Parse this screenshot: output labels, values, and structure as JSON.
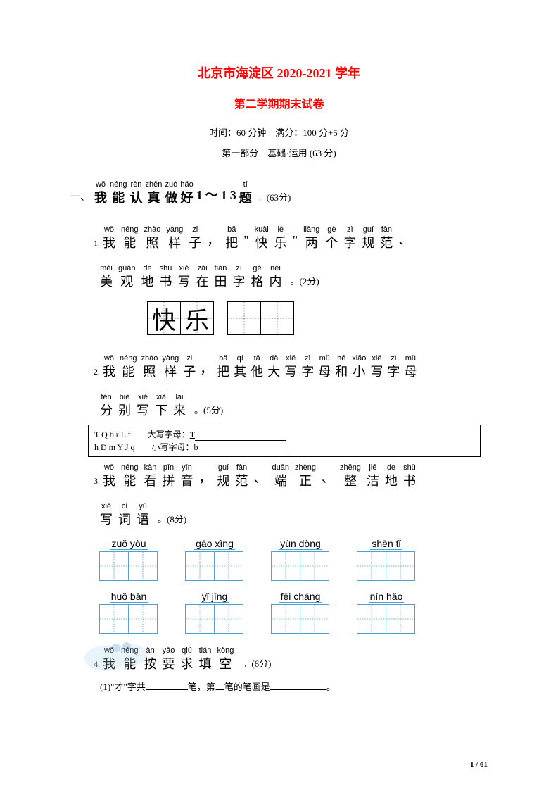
{
  "header": {
    "title_main": "北京市海淀区 2020-2021 学年",
    "title_sub": "第二学期期末试卷",
    "meta": "时间：60 分钟　满分：100 分+5 分",
    "section": "第一部分　基础·运用  (63 分)"
  },
  "section1": {
    "num": "一、",
    "chars": [
      {
        "p": "wǒ",
        "h": "我"
      },
      {
        "p": "néng",
        "h": "能"
      },
      {
        "p": "rèn",
        "h": "认"
      },
      {
        "p": "zhēn",
        "h": "真"
      },
      {
        "p": "zuò",
        "h": "做"
      },
      {
        "p": "hǎo",
        "h": "好"
      },
      {
        "p": "",
        "h": "1"
      },
      {
        "p": "",
        "h": "～"
      },
      {
        "p": "",
        "h": "1"
      },
      {
        "p": "",
        "h": "3"
      },
      {
        "p": "tí",
        "h": "题"
      }
    ],
    "tail": "。(63分)"
  },
  "q1": {
    "num": "1.",
    "line1": [
      {
        "p": "wǒ",
        "h": "我"
      },
      {
        "p": "néng",
        "h": "能"
      },
      {
        "p": "zhào",
        "h": "照"
      },
      {
        "p": "yàng",
        "h": "样"
      },
      {
        "p": "zi",
        "h": "子"
      },
      {
        "p": "",
        "h": "，"
      },
      {
        "p": "bǎ",
        "h": "把"
      },
      {
        "p": "",
        "h": "\""
      },
      {
        "p": "kuài",
        "h": "快"
      },
      {
        "p": "lè",
        "h": "乐"
      },
      {
        "p": "",
        "h": "\""
      },
      {
        "p": "liǎng",
        "h": "两"
      },
      {
        "p": "gè",
        "h": "个"
      },
      {
        "p": "zì",
        "h": "字"
      },
      {
        "p": "guī",
        "h": "规"
      },
      {
        "p": "fàn",
        "h": "范"
      },
      {
        "p": "",
        "h": "、"
      }
    ],
    "line2": [
      {
        "p": "měi",
        "h": "美"
      },
      {
        "p": "guān",
        "h": "观"
      },
      {
        "p": "de",
        "h": "地"
      },
      {
        "p": "shū",
        "h": "书"
      },
      {
        "p": "xiě",
        "h": "写"
      },
      {
        "p": "zài",
        "h": "在"
      },
      {
        "p": "tián",
        "h": "田"
      },
      {
        "p": "zì",
        "h": "字"
      },
      {
        "p": "gé",
        "h": "格"
      },
      {
        "p": "nèi",
        "h": "内"
      }
    ],
    "tail": "。(2分)",
    "sample": [
      "快",
      "乐"
    ]
  },
  "q2": {
    "num": "2.",
    "line1": [
      {
        "p": "wǒ",
        "h": "我"
      },
      {
        "p": "néng",
        "h": "能"
      },
      {
        "p": "zhào",
        "h": "照"
      },
      {
        "p": "yàng",
        "h": "样"
      },
      {
        "p": "zi",
        "h": "子"
      },
      {
        "p": "",
        "h": "，"
      },
      {
        "p": "bǎ",
        "h": "把"
      },
      {
        "p": "qí",
        "h": "其"
      },
      {
        "p": "tā",
        "h": "他"
      },
      {
        "p": "dà",
        "h": "大"
      },
      {
        "p": "xiě",
        "h": "写"
      },
      {
        "p": "zì",
        "h": "字"
      },
      {
        "p": "mǔ",
        "h": "母"
      },
      {
        "p": "hé",
        "h": "和"
      },
      {
        "p": "xiǎo",
        "h": "小"
      },
      {
        "p": "xiě",
        "h": "写"
      },
      {
        "p": "zì",
        "h": "字"
      },
      {
        "p": "mǔ",
        "h": "母"
      }
    ],
    "line2": [
      {
        "p": "fēn",
        "h": "分"
      },
      {
        "p": "bié",
        "h": "别"
      },
      {
        "p": "xiě",
        "h": "写"
      },
      {
        "p": "xià",
        "h": "下"
      },
      {
        "p": "lái",
        "h": "来"
      }
    ],
    "tail": "。(5分)",
    "box": {
      "row1_letters": "T  Q  b  r  L  f",
      "row1_label": "大写字母：",
      "row1_sample": "T",
      "row2_letters": "h  D  m  Y  J  q",
      "row2_label": "小写字母：",
      "row2_sample": "b"
    }
  },
  "q3": {
    "num": "3.",
    "line1": [
      {
        "p": "wǒ",
        "h": "我"
      },
      {
        "p": "néng",
        "h": "能"
      },
      {
        "p": "kàn",
        "h": "看"
      },
      {
        "p": "pīn",
        "h": "拼"
      },
      {
        "p": "yīn",
        "h": "音"
      },
      {
        "p": "",
        "h": "，"
      },
      {
        "p": "guī",
        "h": "规"
      },
      {
        "p": "fàn",
        "h": "范"
      },
      {
        "p": "",
        "h": "、"
      },
      {
        "p": "duān",
        "h": "端"
      },
      {
        "p": "zhèng",
        "h": "正"
      },
      {
        "p": "",
        "h": "、"
      },
      {
        "p": "zhěng",
        "h": "整"
      },
      {
        "p": "jié",
        "h": "洁"
      },
      {
        "p": "de",
        "h": "地"
      },
      {
        "p": "shū",
        "h": "书"
      }
    ],
    "line2": [
      {
        "p": "xiě",
        "h": "写"
      },
      {
        "p": "cí",
        "h": "词"
      },
      {
        "p": "yǔ",
        "h": "语"
      }
    ],
    "tail": "。(8分)",
    "grid_row1": [
      {
        "label": "zuǒ  yòu"
      },
      {
        "label": "gāo  xìng"
      },
      {
        "label": "yùn  dòng"
      },
      {
        "label": "shēn   tǐ"
      }
    ],
    "grid_row2": [
      {
        "label": "huǒ  bàn"
      },
      {
        "label": "yǐ  jīng"
      },
      {
        "label": "fēi  cháng"
      },
      {
        "label": "nín   hǎo"
      }
    ]
  },
  "q4": {
    "num": "4.",
    "line1": [
      {
        "p": "wǒ",
        "h": "我"
      },
      {
        "p": "néng",
        "h": "能"
      },
      {
        "p": "àn",
        "h": "按"
      },
      {
        "p": "yāo",
        "h": "要"
      },
      {
        "p": "qiú",
        "h": "求"
      },
      {
        "p": "tián",
        "h": "填"
      },
      {
        "p": "kòng",
        "h": "空"
      }
    ],
    "tail": "。(6分)",
    "sub1_pre": "(1)\"才\"字共",
    "sub1_mid": "笔，第二笔的笔画是",
    "sub1_end": "。"
  },
  "page": {
    "num": "1 / 61"
  }
}
